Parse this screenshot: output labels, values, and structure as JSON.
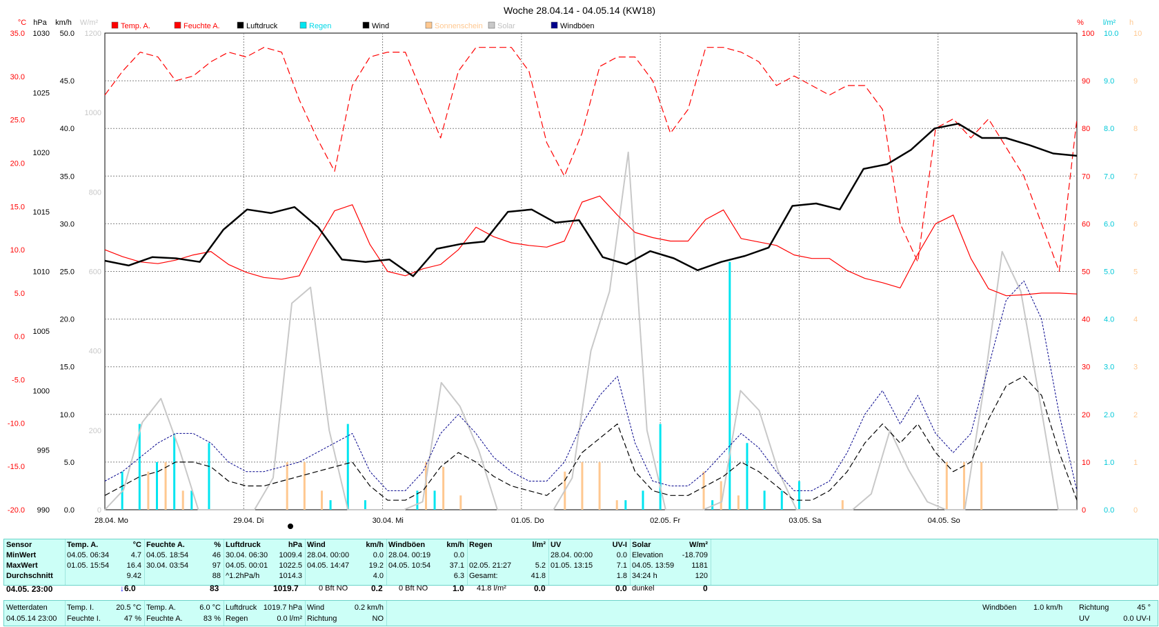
{
  "title": "Woche 28.04.14 - 04.05.14 (KW18)",
  "legend": [
    {
      "label": "Temp. A.",
      "color": "#ff0000"
    },
    {
      "label": "Feuchte A.",
      "color": "#ff0000"
    },
    {
      "label": "Luftdruck",
      "color": "#000000"
    },
    {
      "label": "Regen",
      "color": "#00e5f0"
    },
    {
      "label": "Wind",
      "color": "#000000"
    },
    {
      "label": "Sonnenschein",
      "color": "#ffc890"
    },
    {
      "label": "Solar",
      "color": "#c8c8c8"
    },
    {
      "label": "Windböen",
      "color": "#00008b"
    }
  ],
  "axis_units": {
    "temp": "°C",
    "pressure": "hPa",
    "wind": "km/h",
    "solar": "W/m²",
    "humidity": "%",
    "rain": "l/m²",
    "sunshine": "h"
  },
  "axis_ticks": {
    "temp": [
      "35.0",
      "30.0",
      "25.0",
      "20.0",
      "15.0",
      "10.0",
      "5.0",
      "0.0",
      "-5.0",
      "-10.0",
      "-15.0",
      "-20.0"
    ],
    "pressure": [
      "1030",
      "1025",
      "1020",
      "1015",
      "1010",
      "1005",
      "1000",
      "995",
      "990"
    ],
    "wind": [
      "50.0",
      "45.0",
      "40.0",
      "35.0",
      "30.0",
      "25.0",
      "20.0",
      "15.0",
      "10.0",
      "5.0",
      "0.0"
    ],
    "solar": [
      "1200",
      "1000",
      "800",
      "600",
      "400",
      "200",
      "0"
    ],
    "humidity": [
      "100",
      "90",
      "80",
      "70",
      "60",
      "50",
      "40",
      "30",
      "20",
      "10",
      "0"
    ],
    "rain": [
      "10.0",
      "9.0",
      "8.0",
      "7.0",
      "6.0",
      "5.0",
      "4.0",
      "3.0",
      "2.0",
      "1.0",
      "0.0"
    ],
    "sunshine": [
      "10",
      "9",
      "8",
      "7",
      "6",
      "5",
      "4",
      "3",
      "2",
      "1",
      "0"
    ]
  },
  "x_labels": [
    "28.04.  Mo",
    "29.04.  Di",
    "30.04.  Mi",
    "01.05.  Do",
    "02.05.  Fr",
    "03.05.  Sa",
    "04.05.  So"
  ],
  "colors": {
    "temp": "#ff0000",
    "humidity": "#ff0000",
    "pressure": "#000000",
    "rain": "#00e5f0",
    "wind": "#000000",
    "gusts": "#00008b",
    "solar": "#c8c8c8",
    "sunshine": "#ffc890",
    "stats_bg": "#ccfff7",
    "arrow": "#0000ff"
  },
  "chart_data": {
    "type": "line",
    "x_start": "28.04.14 00:00",
    "x_end": "04.05.14 23:00",
    "x_step_hours": 3,
    "x_tick_labels": [
      "28.04. Mo",
      "29.04. Di",
      "30.04. Mi",
      "01.05. Do",
      "02.05. Fr",
      "03.05. Sa",
      "04.05. So"
    ],
    "grid": true,
    "axes": {
      "temp_celsius": [
        -20,
        35
      ],
      "pressure_hpa": [
        990,
        1030
      ],
      "wind_kmh": [
        0,
        50
      ],
      "solar_wm2": [
        0,
        1200
      ],
      "humidity_percent": [
        0,
        100
      ],
      "rain_lm2": [
        0,
        10
      ],
      "sunshine_h": [
        0,
        10
      ]
    },
    "series": [
      {
        "name": "Temp. A.",
        "axis": "temp_celsius",
        "values": [
          10.0,
          9.2,
          8.6,
          8.4,
          8.8,
          9.4,
          9.8,
          8.3,
          7.4,
          6.8,
          6.6,
          7.0,
          11.0,
          14.5,
          15.2,
          10.6,
          7.5,
          7.0,
          7.8,
          8.3,
          10.0,
          12.6,
          11.5,
          10.8,
          10.5,
          10.3,
          11.0,
          15.5,
          16.2,
          14.0,
          12.0,
          11.4,
          11.0,
          11.0,
          13.5,
          14.6,
          11.3,
          10.9,
          10.5,
          9.4,
          9.0,
          9.0,
          7.6,
          6.7,
          6.2,
          5.6,
          9.5,
          13.0,
          14.0,
          9.0,
          5.5,
          4.7,
          4.8,
          5.0,
          5.0,
          4.9
        ]
      },
      {
        "name": "Feuchte A.",
        "axis": "humidity_percent",
        "values": [
          87,
          92,
          96,
          95,
          90,
          91,
          94,
          96,
          95,
          97,
          96,
          86,
          78,
          71,
          89,
          95,
          96,
          96,
          87,
          78,
          92,
          97,
          97,
          97,
          92,
          77,
          70,
          79,
          93,
          95,
          95,
          90,
          79,
          84,
          97,
          97,
          96,
          94,
          89,
          91,
          89,
          87,
          89,
          89,
          84,
          60,
          52,
          80,
          82,
          78,
          82,
          76,
          70,
          60,
          50,
          82
        ]
      },
      {
        "name": "Luftdruck",
        "axis": "pressure_hpa",
        "values": [
          1010.9,
          1010.5,
          1011.2,
          1011.1,
          1010.8,
          1013.5,
          1015.2,
          1014.9,
          1015.4,
          1013.7,
          1011.0,
          1010.8,
          1011.0,
          1009.6,
          1011.9,
          1012.3,
          1012.5,
          1015.0,
          1015.2,
          1014.1,
          1014.3,
          1011.2,
          1010.6,
          1011.7,
          1011.1,
          1010.1,
          1010.8,
          1011.3,
          1012.0,
          1015.5,
          1015.7,
          1015.2,
          1018.6,
          1019.0,
          1020.2,
          1022.0,
          1022.4,
          1021.2,
          1021.2,
          1020.6,
          1019.9,
          1019.7
        ]
      },
      {
        "name": "Wind",
        "axis": "wind_kmh",
        "values": [
          1.5,
          2.5,
          3.5,
          4.0,
          5.0,
          5.0,
          4.5,
          3.0,
          2.5,
          2.5,
          3.0,
          3.5,
          4.0,
          4.5,
          5.0,
          2.5,
          1.0,
          1.0,
          2.0,
          4.5,
          6.0,
          5.0,
          3.5,
          2.5,
          2.0,
          1.5,
          3.0,
          6.0,
          7.5,
          9.0,
          4.0,
          2.0,
          1.5,
          1.5,
          2.5,
          3.5,
          5.0,
          4.0,
          2.5,
          1.0,
          1.0,
          2.0,
          4.0,
          7.0,
          9.0,
          7.0,
          9.0,
          6.0,
          4.0,
          5.0,
          9.5,
          13.0,
          14.0,
          12.0,
          6.0,
          1.0
        ]
      },
      {
        "name": "Windböen",
        "axis": "wind_kmh",
        "values": [
          3.0,
          4.0,
          5.5,
          7.0,
          8.0,
          8.0,
          7.0,
          5.0,
          4.0,
          4.0,
          4.5,
          5.0,
          6.0,
          7.0,
          8.0,
          4.0,
          2.0,
          2.0,
          4.0,
          8.0,
          10.0,
          8.0,
          5.5,
          4.0,
          3.0,
          3.0,
          5.0,
          9.0,
          12.0,
          14.0,
          7.0,
          3.0,
          2.5,
          2.5,
          4.0,
          6.0,
          8.0,
          6.5,
          4.0,
          2.0,
          2.0,
          3.0,
          6.0,
          10.0,
          12.5,
          9.0,
          12.0,
          8.0,
          6.0,
          8.0,
          15.0,
          22.0,
          24.0,
          20.0,
          10.0,
          2.0
        ]
      },
      {
        "name": "Solar",
        "axis": "solar_wm2",
        "values": [
          0,
          50,
          220,
          280,
          150,
          0,
          0,
          0,
          0,
          80,
          520,
          560,
          200,
          0,
          0,
          0,
          0,
          20,
          320,
          260,
          150,
          0,
          0,
          0,
          0,
          80,
          400,
          550,
          900,
          200,
          0,
          0,
          0,
          20,
          300,
          250,
          100,
          0,
          0,
          0,
          0,
          40,
          200,
          100,
          20,
          0,
          0,
          300,
          650,
          550,
          280,
          0,
          0
        ]
      },
      {
        "name": "Regen",
        "axis": "rain_lm2",
        "values": [
          0.0,
          0.8,
          1.8,
          1.0,
          1.6,
          0.4,
          1.4,
          0.0,
          0.0,
          0.0,
          0.0,
          0.0,
          0.0,
          0.2,
          1.8,
          0.2,
          0.0,
          0.0,
          0.4,
          0.4,
          0.0,
          0.0,
          0.0,
          0.0,
          0.0,
          0.0,
          0.0,
          0.0,
          0.0,
          0.0,
          0.2,
          0.4,
          1.8,
          0.0,
          0.0,
          0.2,
          5.2,
          1.4,
          0.4,
          0.4,
          0.6,
          0.0,
          0.0,
          0.0,
          0.0,
          0.0,
          0.0,
          0.0,
          0.0,
          0.0,
          0.0,
          0.0,
          0.0,
          0.0,
          0.0,
          0.0
        ]
      },
      {
        "name": "Sonnenschein",
        "axis": "sunshine_h",
        "values": [
          0,
          0,
          0.8,
          1.0,
          0.4,
          0,
          0,
          0,
          0,
          0,
          1.0,
          1.0,
          0.4,
          0,
          0,
          0,
          0,
          0,
          1.0,
          0.9,
          0.3,
          0,
          0,
          0,
          0,
          0,
          0.8,
          1.0,
          1.0,
          0.2,
          0,
          0,
          0,
          0,
          0.8,
          0.6,
          0.3,
          0,
          0,
          0,
          0,
          0,
          0.2,
          0,
          0,
          0,
          0,
          0,
          1.0,
          1.0,
          1.0,
          0,
          0
        ]
      }
    ]
  },
  "stats": {
    "header": {
      "sensor": "Sensor",
      "temp": "Temp. A.",
      "temp_unit": "°C",
      "hum": "Feuchte A.",
      "hum_unit": "%",
      "press": "Luftdruck",
      "press_unit": "hPa",
      "wind": "Wind",
      "wind_unit": "km/h",
      "gust": "Windböen",
      "gust_unit": "km/h",
      "rain": "Regen",
      "rain_unit": "l/m²",
      "uv": "UV",
      "uv_unit": "UV-I",
      "solar": "Solar",
      "solar_unit": "W/m²"
    },
    "row_labels": [
      "MinWert",
      "MaxWert",
      "Durchschnitt",
      "04.05. 23:00"
    ],
    "temp": {
      "min_time": "04.05.  06:34",
      "min": "4.7",
      "max_time": "01.05.  15:54",
      "max": "16.4",
      "avg": "9.42",
      "current": "6.0",
      "trend": "↓"
    },
    "hum": {
      "min_time": "04.05.  18:54",
      "min": "46",
      "max_time": "30.04.  03:54",
      "max": "97",
      "avg": "88",
      "current": "83"
    },
    "press": {
      "min_time": "30.04.  06:30",
      "min": "1009.4",
      "max_time": "04.05.  00:01",
      "max": "1022.5",
      "trend_label": "^1.2hPa/h",
      "avg": "1014.3",
      "current": "1019.7"
    },
    "wind": {
      "min_time": "28.04.  00:00",
      "min": "0.0",
      "max_time": "04.05.  14:47",
      "max": "19.2",
      "avg": "4.0",
      "bft": "0 Bft NO",
      "current": "0.2"
    },
    "gust": {
      "min_time": "28.04.  00:19",
      "min": "0.0",
      "max_time": "04.05.  10:54",
      "max": "37.1",
      "avg": "6.3",
      "bft": "0 Bft NO",
      "current": "1.0"
    },
    "rain": {
      "max_time": "02.05.  21:27",
      "max": "5.2",
      "total_label": "Gesamt:",
      "total": "41.8",
      "sum": "41.8 l/m²",
      "current": "0.0"
    },
    "uv": {
      "min_time": "28.04.  00:00",
      "min": "0.0",
      "max_time": "01.05.  13:15",
      "max": "7.1",
      "avg": "1.8",
      "current": "0.0"
    },
    "solar": {
      "elev_label": "Elevation",
      "elev": "-18.709",
      "max_time": "04.05.  13:59",
      "max": "1181",
      "sun_hours": "34:24 h",
      "avg": "120",
      "state": "dunkel",
      "current": "0"
    }
  },
  "current": {
    "wd_label": "Wetterdaten",
    "wd_time": "04.05.14 23:00",
    "ti_label": "Temp. I.",
    "ti": "20.5 °C",
    "fi_label": "Feuchte I.",
    "fi": "47 %",
    "ta_label": "Temp. A.",
    "ta": "6.0 °C",
    "fa_label": "Feuchte A.",
    "fa": "83 %",
    "lp_label": "Luftdruck",
    "lp": "1019.7 hPa",
    "rg_label": "Regen",
    "rg": "0.0 l/m²",
    "wi_label": "Wind",
    "wi": "0.2 km/h",
    "ri_label": "Richtung",
    "ri": "NO",
    "wb_label": "Windböen",
    "wb": "1.0 km/h",
    "ri2_label": "Richtung",
    "ri2": "45 °",
    "uv_label": "UV",
    "uv": "0.0 UV-I"
  }
}
